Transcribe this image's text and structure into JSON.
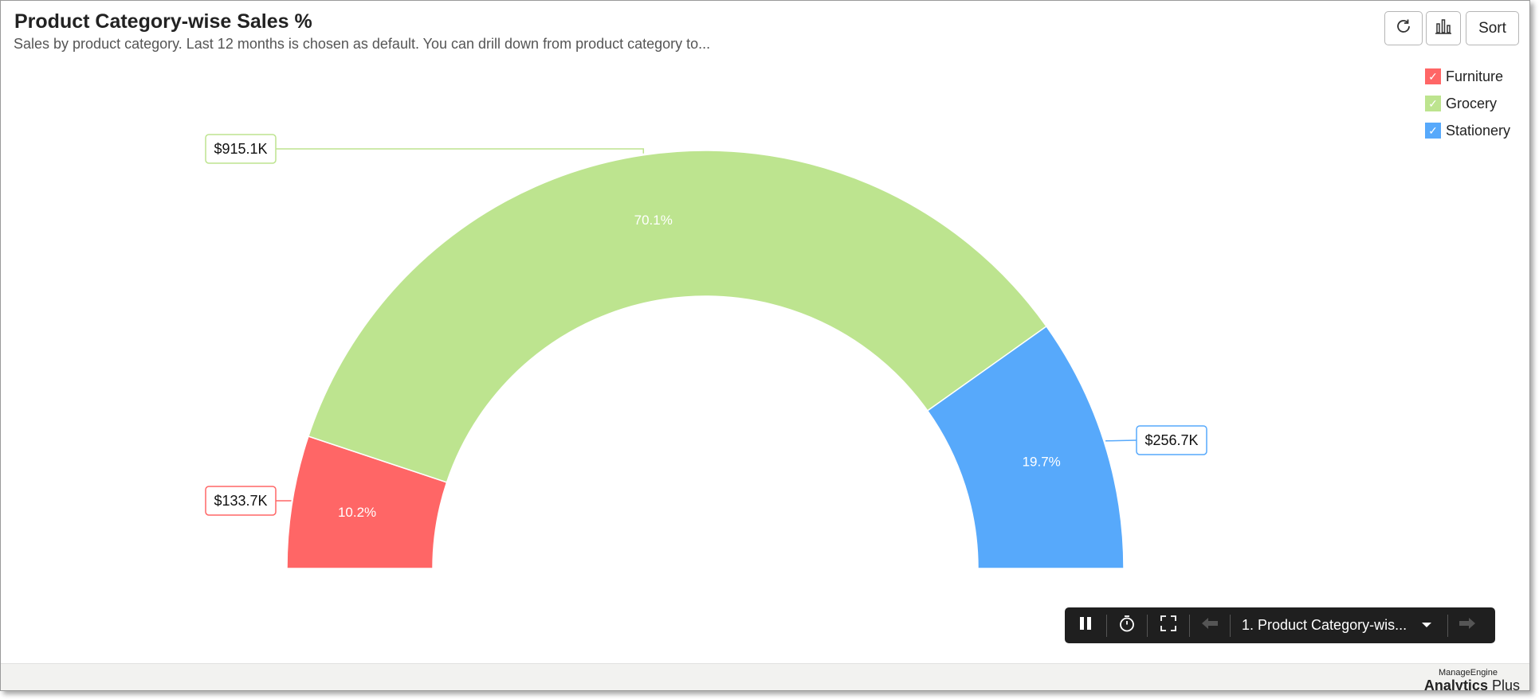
{
  "header": {
    "title": "Product Category-wise Sales %",
    "subtitle": "Sales by product category. Last 12 months is chosen as default. You can drill down from product category to..."
  },
  "toolbar": {
    "refresh_icon": "refresh-icon",
    "chart_icon": "bar-chart-icon",
    "sort_label": "Sort"
  },
  "legend": {
    "items": [
      {
        "label": "Furniture",
        "color": "#ff6666",
        "checked": "✓"
      },
      {
        "label": "Grocery",
        "color": "#bde48f",
        "checked": "✓"
      },
      {
        "label": "Stationery",
        "color": "#57a9fb",
        "checked": "✓"
      }
    ]
  },
  "chart_data": {
    "type": "pie",
    "subtype": "semi-donut",
    "categories": [
      "Furniture",
      "Grocery",
      "Stationery"
    ],
    "values": [
      133.7,
      915.1,
      256.7
    ],
    "value_labels": [
      "$133.7K",
      "$915.1K",
      "$256.7K"
    ],
    "percent_labels": [
      "10.2%",
      "70.1%",
      "19.7%"
    ],
    "colors": [
      "#ff6666",
      "#bde48f",
      "#57a9fb"
    ],
    "legend_position": "top-right"
  },
  "player": {
    "slide_title": "1. Product Category-wis...",
    "icons": [
      "pause-icon",
      "timer-icon",
      "fullscreen-icon",
      "prev-arrow-icon",
      "dropdown-icon",
      "next-arrow-icon"
    ]
  },
  "branding": {
    "top": "ManageEngine",
    "product_main": "Analytics",
    "product_suffix": " Plus"
  }
}
